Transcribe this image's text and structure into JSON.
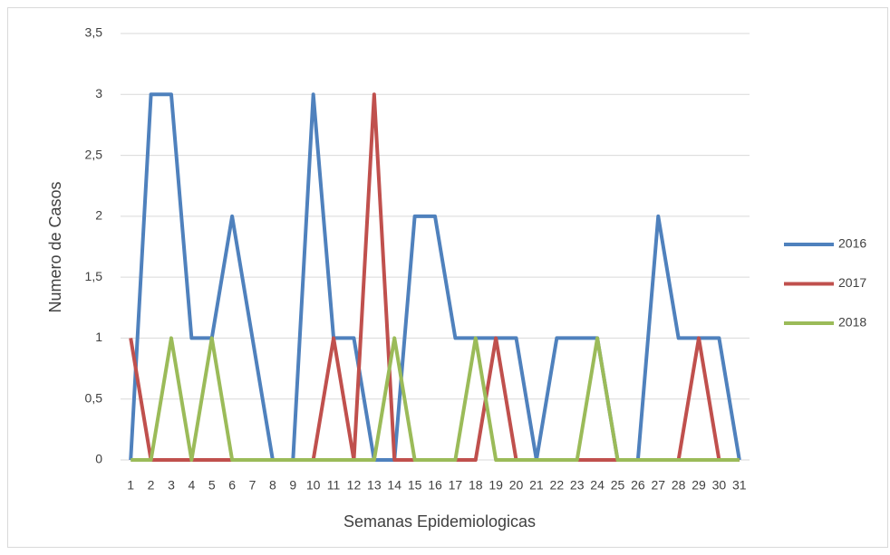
{
  "chart_data": {
    "type": "line",
    "xlabel": "Semanas Epidemiologicas",
    "ylabel": "Numero de Casos",
    "categories": [
      "1",
      "2",
      "3",
      "4",
      "5",
      "6",
      "7",
      "8",
      "9",
      "10",
      "11",
      "12",
      "13",
      "14",
      "15",
      "16",
      "17",
      "18",
      "19",
      "20",
      "21",
      "22",
      "23",
      "24",
      "25",
      "26",
      "27",
      "28",
      "29",
      "30",
      "31"
    ],
    "series": [
      {
        "name": "2016",
        "color": "#4f81bd",
        "values": [
          0,
          3,
          3,
          1,
          1,
          2,
          1,
          0,
          0,
          3,
          1,
          1,
          0,
          0,
          2,
          2,
          1,
          1,
          1,
          1,
          0,
          1,
          1,
          1,
          0,
          0,
          2,
          1,
          1,
          1,
          0
        ]
      },
      {
        "name": "2017",
        "color": "#c0504d",
        "values": [
          1,
          0,
          0,
          0,
          0,
          0,
          0,
          0,
          0,
          0,
          1,
          0,
          3,
          0,
          0,
          0,
          0,
          0,
          1,
          0,
          0,
          0,
          0,
          0,
          0,
          0,
          0,
          0,
          1,
          0,
          0
        ]
      },
      {
        "name": "2018",
        "color": "#9bbb59",
        "values": [
          0,
          0,
          1,
          0,
          1,
          0,
          0,
          0,
          0,
          0,
          0,
          0,
          0,
          1,
          0,
          0,
          0,
          1,
          0,
          0,
          0,
          0,
          0,
          1,
          0,
          0,
          0,
          0,
          0,
          0,
          0
        ]
      }
    ],
    "ylim": [
      0,
      3.5
    ],
    "yticks": [
      0,
      {
        "value": 0.5,
        "label": "0,5"
      },
      1,
      {
        "value": 1.5,
        "label": "1,5"
      },
      2,
      {
        "value": 2.5,
        "label": "2,5"
      },
      3,
      {
        "value": 3.5,
        "label": "3,5"
      }
    ],
    "grid": true,
    "legend": "right"
  }
}
